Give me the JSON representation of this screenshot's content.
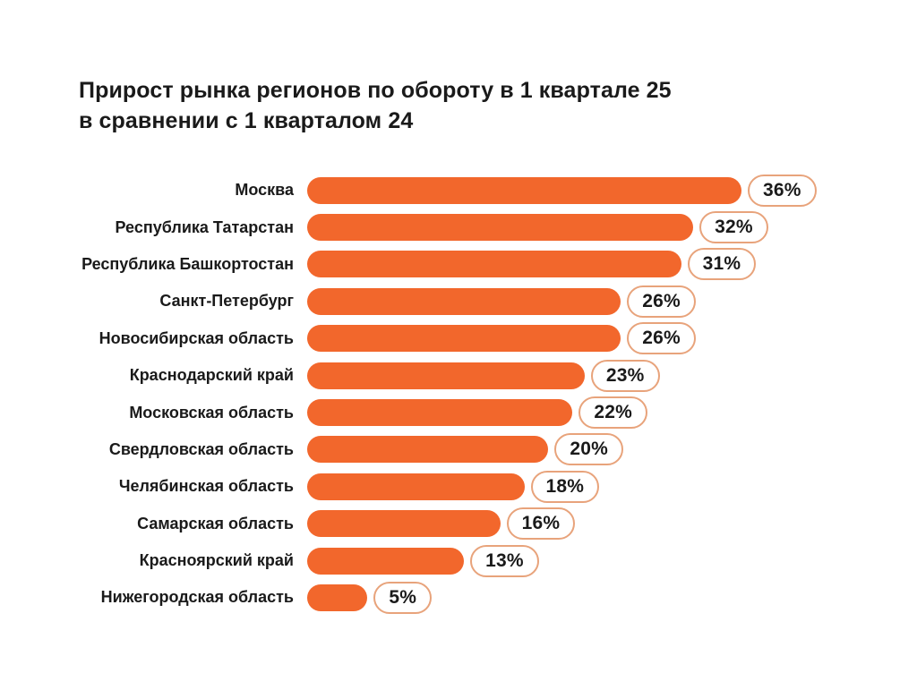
{
  "page": {
    "background": "#FFFFFF"
  },
  "chart_data": {
    "type": "bar",
    "orientation": "horizontal",
    "title": "Прирост рынка регионов по обороту в 1 квартале 25 в сравнении с 1 кварталом 24",
    "title_lines": [
      "Прирост рынка регионов по обороту в 1 квартале 25",
      "в сравнении с 1 кварталом 24"
    ],
    "categories": [
      "Москва",
      "Республика Татарстан",
      "Республика Башкортостан",
      "Санкт-Петербург",
      "Новосибирская область",
      "Краснодарский край",
      "Московская область",
      "Свердловская область",
      "Челябинская область",
      "Самарская область",
      "Красноярский край",
      "Нижегородская область"
    ],
    "values": [
      36,
      32,
      31,
      26,
      26,
      23,
      22,
      20,
      18,
      16,
      13,
      5
    ],
    "value_labels": [
      "36%",
      "32%",
      "31%",
      "26%",
      "26%",
      "23%",
      "22%",
      "20%",
      "18%",
      "16%",
      "13%",
      "5%"
    ],
    "unit": "%",
    "xlabel": "",
    "ylabel": "",
    "xlim": [
      0,
      36
    ],
    "grid": false,
    "legend": "none",
    "value_label_style": "pill-badge-at-bar-end",
    "colors": {
      "bar": "#F2672C",
      "badge_background": "#FFFFFF",
      "badge_border": "#E8A37B",
      "text": "#1A1A1A",
      "background": "#FFFFFF"
    }
  }
}
